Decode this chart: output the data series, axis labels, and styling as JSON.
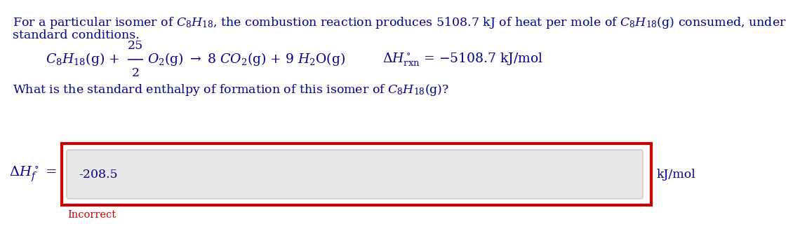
{
  "bg_color": "#ffffff",
  "blue": "#00008B",
  "red": "#CC0000",
  "gray_box_fill": "#e8e8e8",
  "gray_box_edge": "#aaaaaa",
  "line1": "For a particular isomer of $C_8H_{18}$, the combustion reaction produces 5108.7 kJ of heat per mole of $C_8H_{18}$(g) consumed, under",
  "line2": "standard conditions.",
  "eq_left": "$C_8H_{18}$(g) +",
  "frac_num": "25",
  "frac_den": "2",
  "eq_right": "$O_2$(g) $\\rightarrow$ 8 $CO_2$(g) + 9 $H_2$O(g)",
  "dh_label": "$\\Delta H^\\circ_{\\mathrm{rxn}}$",
  "dh_value": " = −5108.7 kJ/mol",
  "question": "What is the standard enthalpy of formation of this isomer of $C_8H_{18}$(g)?",
  "answer_label": "$\\Delta H^\\circ_f$",
  "answer_eq": " =",
  "answer_value": "-208.5",
  "answer_unit": "kJ/mol",
  "incorrect": "Incorrect",
  "fs_main": 12.5,
  "fs_eq": 13.5,
  "fs_label": 14
}
